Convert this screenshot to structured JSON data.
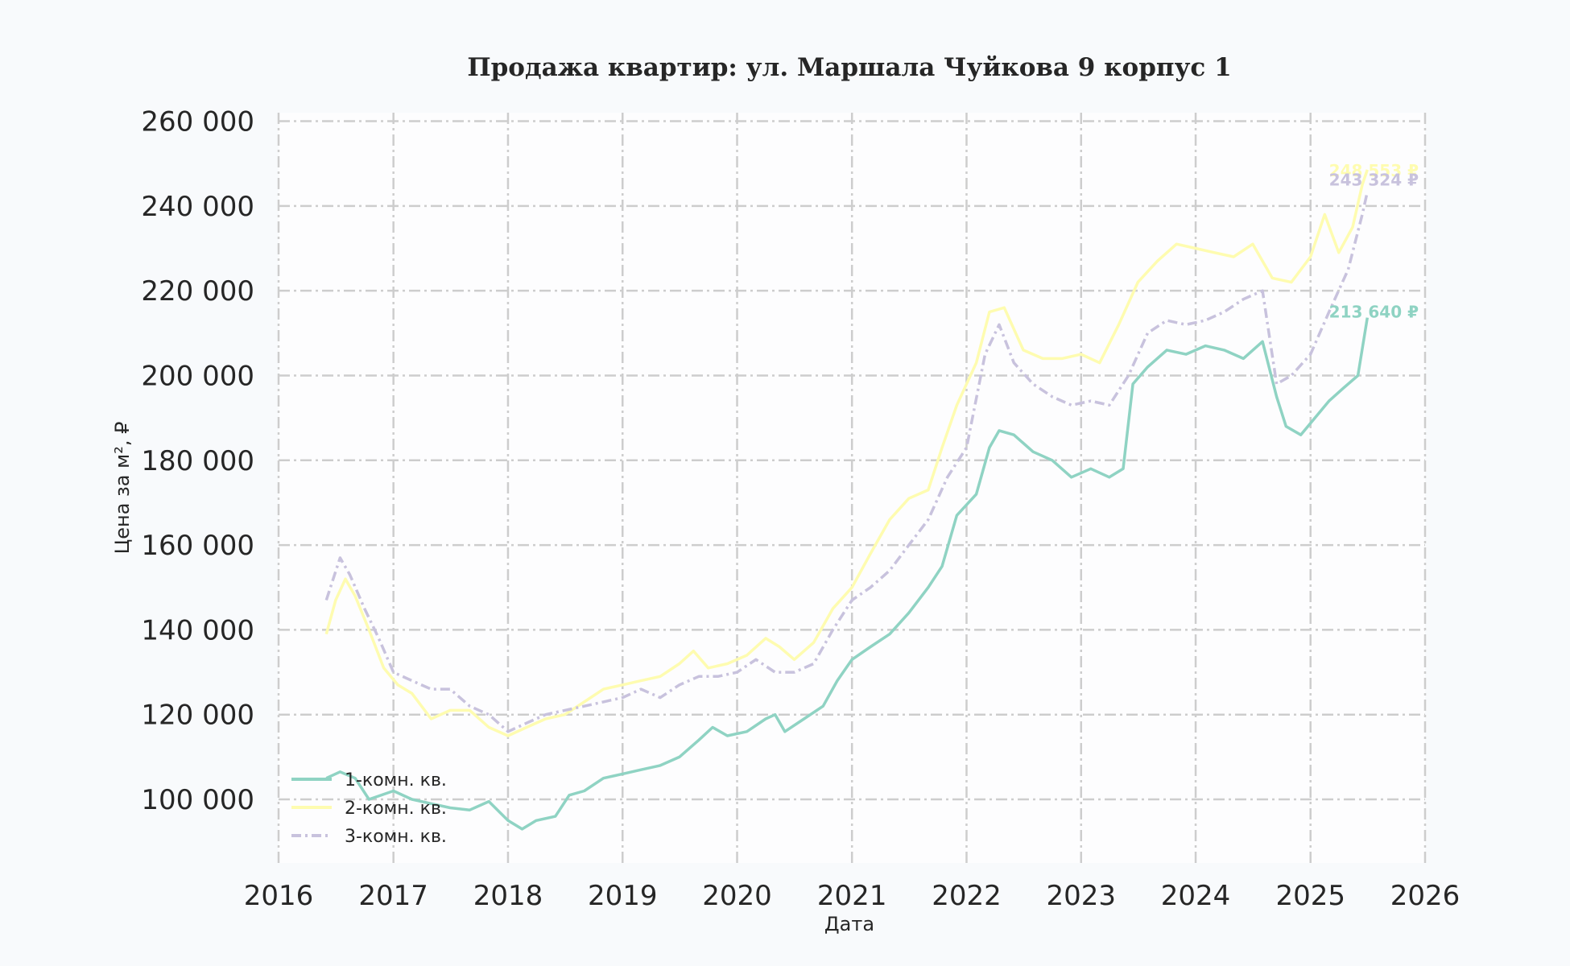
{
  "chart_data": {
    "type": "line",
    "title": "Продажа квартир: ул. Маршала Чуйкова 9 корпус 1",
    "xlabel": "Дата",
    "ylabel": "Цена за м², ₽",
    "xlim": [
      "2016-01-01",
      "2026-01-01"
    ],
    "ylim": [
      85000,
      262000
    ],
    "x_ticks": [
      "2016",
      "2017",
      "2018",
      "2019",
      "2020",
      "2021",
      "2022",
      "2023",
      "2024",
      "2025",
      "2026"
    ],
    "y_ticks": [
      {
        "value": 100000,
        "label": "100 000"
      },
      {
        "value": 120000,
        "label": "120 000"
      },
      {
        "value": 140000,
        "label": "140 000"
      },
      {
        "value": 160000,
        "label": "160 000"
      },
      {
        "value": 180000,
        "label": "180 000"
      },
      {
        "value": 200000,
        "label": "200 000"
      },
      {
        "value": 220000,
        "label": "220 000"
      },
      {
        "value": 240000,
        "label": "240 000"
      },
      {
        "value": 260000,
        "label": "260 000"
      }
    ],
    "grid": true,
    "legend_position": "lower-left",
    "series": [
      {
        "name": "1-комн. кв.",
        "color": "#8fd3c3",
        "style": "solid",
        "end_label": "213 640 ₽",
        "points": [
          [
            "2016-06-01",
            105000
          ],
          [
            "2016-07-15",
            106500
          ],
          [
            "2016-09-01",
            105000
          ],
          [
            "2016-10-15",
            100000
          ],
          [
            "2017-01-01",
            102000
          ],
          [
            "2017-03-01",
            100000
          ],
          [
            "2017-05-01",
            99000
          ],
          [
            "2017-07-01",
            98000
          ],
          [
            "2017-09-01",
            97500
          ],
          [
            "2017-11-01",
            99500
          ],
          [
            "2018-01-01",
            95000
          ],
          [
            "2018-02-15",
            93000
          ],
          [
            "2018-04-01",
            95000
          ],
          [
            "2018-06-01",
            96000
          ],
          [
            "2018-07-15",
            101000
          ],
          [
            "2018-09-01",
            102000
          ],
          [
            "2018-11-01",
            105000
          ],
          [
            "2019-01-01",
            106000
          ],
          [
            "2019-03-01",
            107000
          ],
          [
            "2019-05-01",
            108000
          ],
          [
            "2019-07-01",
            110000
          ],
          [
            "2019-09-01",
            114000
          ],
          [
            "2019-10-15",
            117000
          ],
          [
            "2019-12-01",
            115000
          ],
          [
            "2020-02-01",
            116000
          ],
          [
            "2020-04-01",
            119000
          ],
          [
            "2020-05-01",
            120000
          ],
          [
            "2020-06-01",
            116000
          ],
          [
            "2020-08-01",
            119000
          ],
          [
            "2020-10-01",
            122000
          ],
          [
            "2020-11-15",
            128000
          ],
          [
            "2021-01-01",
            133000
          ],
          [
            "2021-03-01",
            136000
          ],
          [
            "2021-05-01",
            139000
          ],
          [
            "2021-07-01",
            144000
          ],
          [
            "2021-09-01",
            150000
          ],
          [
            "2021-10-15",
            155000
          ],
          [
            "2021-12-01",
            167000
          ],
          [
            "2022-02-01",
            172000
          ],
          [
            "2022-03-15",
            183000
          ],
          [
            "2022-04-15",
            187000
          ],
          [
            "2022-06-01",
            186000
          ],
          [
            "2022-08-01",
            182000
          ],
          [
            "2022-10-01",
            180000
          ],
          [
            "2022-12-01",
            176000
          ],
          [
            "2023-02-01",
            178000
          ],
          [
            "2023-04-01",
            176000
          ],
          [
            "2023-05-15",
            178000
          ],
          [
            "2023-06-15",
            198000
          ],
          [
            "2023-08-01",
            202000
          ],
          [
            "2023-10-01",
            206000
          ],
          [
            "2023-12-01",
            205000
          ],
          [
            "2024-02-01",
            207000
          ],
          [
            "2024-04-01",
            206000
          ],
          [
            "2024-06-01",
            204000
          ],
          [
            "2024-08-01",
            208000
          ],
          [
            "2024-09-15",
            195000
          ],
          [
            "2024-10-15",
            188000
          ],
          [
            "2024-12-01",
            186000
          ],
          [
            "2025-01-15",
            190000
          ],
          [
            "2025-03-01",
            194000
          ],
          [
            "2025-04-15",
            197000
          ],
          [
            "2025-06-01",
            200000
          ],
          [
            "2025-07-01",
            213640
          ]
        ]
      },
      {
        "name": "2-комн. кв.",
        "color": "#fefcb0",
        "style": "solid",
        "end_label": "248 553 ₽",
        "points": [
          [
            "2016-06-01",
            139000
          ],
          [
            "2016-07-01",
            147000
          ],
          [
            "2016-08-01",
            152000
          ],
          [
            "2016-09-01",
            148000
          ],
          [
            "2016-10-15",
            140000
          ],
          [
            "2016-12-01",
            131000
          ],
          [
            "2017-01-15",
            127000
          ],
          [
            "2017-03-01",
            125000
          ],
          [
            "2017-05-01",
            119000
          ],
          [
            "2017-07-01",
            121000
          ],
          [
            "2017-09-01",
            121000
          ],
          [
            "2017-11-01",
            117000
          ],
          [
            "2018-01-01",
            115000
          ],
          [
            "2018-03-01",
            117000
          ],
          [
            "2018-05-01",
            119000
          ],
          [
            "2018-07-01",
            120000
          ],
          [
            "2018-09-01",
            123000
          ],
          [
            "2018-11-01",
            126000
          ],
          [
            "2019-01-01",
            127000
          ],
          [
            "2019-03-01",
            128000
          ],
          [
            "2019-05-01",
            129000
          ],
          [
            "2019-07-01",
            132000
          ],
          [
            "2019-08-15",
            135000
          ],
          [
            "2019-10-01",
            131000
          ],
          [
            "2019-12-01",
            132000
          ],
          [
            "2020-02-01",
            134000
          ],
          [
            "2020-04-01",
            138000
          ],
          [
            "2020-05-15",
            136000
          ],
          [
            "2020-07-01",
            133000
          ],
          [
            "2020-09-01",
            137000
          ],
          [
            "2020-11-01",
            145000
          ],
          [
            "2021-01-01",
            150000
          ],
          [
            "2021-03-01",
            158000
          ],
          [
            "2021-05-01",
            166000
          ],
          [
            "2021-07-01",
            171000
          ],
          [
            "2021-09-01",
            173000
          ],
          [
            "2021-10-15",
            183000
          ],
          [
            "2021-12-01",
            193000
          ],
          [
            "2022-02-01",
            203000
          ],
          [
            "2022-03-15",
            215000
          ],
          [
            "2022-05-01",
            216000
          ],
          [
            "2022-07-01",
            206000
          ],
          [
            "2022-09-01",
            204000
          ],
          [
            "2022-11-01",
            204000
          ],
          [
            "2023-01-01",
            205000
          ],
          [
            "2023-03-01",
            203000
          ],
          [
            "2023-05-01",
            212000
          ],
          [
            "2023-07-01",
            222000
          ],
          [
            "2023-09-01",
            227000
          ],
          [
            "2023-11-01",
            231000
          ],
          [
            "2024-01-01",
            230000
          ],
          [
            "2024-03-01",
            229000
          ],
          [
            "2024-05-01",
            228000
          ],
          [
            "2024-07-01",
            231000
          ],
          [
            "2024-09-01",
            223000
          ],
          [
            "2024-11-01",
            222000
          ],
          [
            "2025-01-01",
            228000
          ],
          [
            "2025-02-15",
            238000
          ],
          [
            "2025-04-01",
            229000
          ],
          [
            "2025-05-15",
            235000
          ],
          [
            "2025-06-15",
            245000
          ],
          [
            "2025-07-01",
            248553
          ]
        ]
      },
      {
        "name": "3-комн. кв.",
        "color": "#c8c2dd",
        "style": "dashdot",
        "end_label": "243 324 ₽",
        "points": [
          [
            "2016-06-01",
            147000
          ],
          [
            "2016-07-15",
            157000
          ],
          [
            "2016-08-15",
            153000
          ],
          [
            "2016-10-01",
            145000
          ],
          [
            "2016-11-15",
            138000
          ],
          [
            "2017-01-01",
            130000
          ],
          [
            "2017-03-01",
            128000
          ],
          [
            "2017-05-01",
            126000
          ],
          [
            "2017-07-01",
            126000
          ],
          [
            "2017-09-01",
            122000
          ],
          [
            "2017-11-01",
            120000
          ],
          [
            "2018-01-01",
            116000
          ],
          [
            "2018-03-01",
            118000
          ],
          [
            "2018-05-01",
            120000
          ],
          [
            "2018-07-01",
            121000
          ],
          [
            "2018-09-01",
            122000
          ],
          [
            "2018-11-01",
            123000
          ],
          [
            "2019-01-01",
            124000
          ],
          [
            "2019-03-01",
            126000
          ],
          [
            "2019-05-01",
            124000
          ],
          [
            "2019-07-01",
            127000
          ],
          [
            "2019-09-01",
            129000
          ],
          [
            "2019-11-01",
            129000
          ],
          [
            "2020-01-01",
            130000
          ],
          [
            "2020-03-01",
            133000
          ],
          [
            "2020-05-01",
            130000
          ],
          [
            "2020-07-01",
            130000
          ],
          [
            "2020-09-01",
            132000
          ],
          [
            "2020-11-01",
            140000
          ],
          [
            "2021-01-01",
            147000
          ],
          [
            "2021-03-01",
            150000
          ],
          [
            "2021-05-01",
            154000
          ],
          [
            "2021-07-01",
            160000
          ],
          [
            "2021-09-01",
            166000
          ],
          [
            "2021-11-01",
            176000
          ],
          [
            "2022-01-01",
            183000
          ],
          [
            "2022-03-01",
            205000
          ],
          [
            "2022-04-15",
            212000
          ],
          [
            "2022-06-01",
            203000
          ],
          [
            "2022-08-01",
            198000
          ],
          [
            "2022-10-01",
            195000
          ],
          [
            "2022-12-01",
            193000
          ],
          [
            "2023-02-01",
            194000
          ],
          [
            "2023-04-01",
            193000
          ],
          [
            "2023-06-01",
            200000
          ],
          [
            "2023-08-01",
            210000
          ],
          [
            "2023-10-01",
            213000
          ],
          [
            "2023-12-01",
            212000
          ],
          [
            "2024-02-01",
            213000
          ],
          [
            "2024-04-01",
            215000
          ],
          [
            "2024-06-01",
            218000
          ],
          [
            "2024-08-01",
            220000
          ],
          [
            "2024-09-15",
            198000
          ],
          [
            "2024-11-01",
            200000
          ],
          [
            "2025-01-01",
            205000
          ],
          [
            "2025-03-01",
            215000
          ],
          [
            "2025-05-01",
            225000
          ],
          [
            "2025-06-15",
            238000
          ],
          [
            "2025-07-01",
            243324
          ]
        ]
      }
    ]
  }
}
